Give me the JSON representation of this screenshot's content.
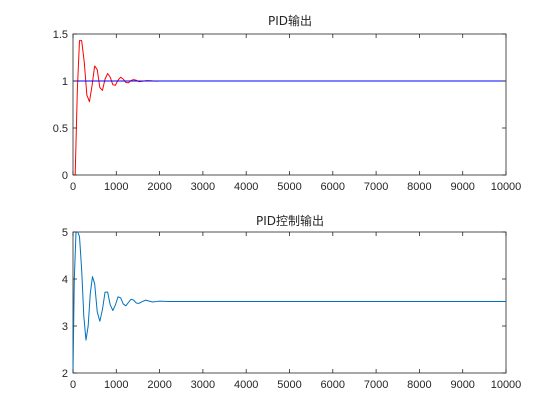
{
  "chart_data": [
    {
      "type": "line",
      "title": "PID输出",
      "xlabel": "",
      "ylabel": "",
      "xlim": [
        0,
        10000
      ],
      "ylim": [
        0,
        1.5
      ],
      "xticks": [
        "0",
        "1000",
        "2000",
        "3000",
        "4000",
        "5000",
        "6000",
        "7000",
        "8000",
        "9000",
        "10000"
      ],
      "yticks": [
        "0",
        "0.5",
        "1",
        "1.5"
      ],
      "grid": false,
      "series": [
        {
          "color": "#ff0000",
          "x": [
            0,
            50,
            100,
            150,
            200,
            260,
            320,
            380,
            440,
            500,
            560,
            620,
            680,
            740,
            800,
            860,
            920,
            980,
            1040,
            1100,
            1160,
            1220,
            1280,
            1340,
            1400,
            1460,
            1520,
            1600,
            1700,
            1800,
            1900,
            2000,
            2200,
            2500,
            3000,
            10000
          ],
          "y": [
            0,
            0.0,
            0.9,
            1.43,
            1.43,
            1.2,
            0.85,
            0.78,
            0.95,
            1.16,
            1.12,
            0.93,
            0.9,
            1.02,
            1.08,
            1.04,
            0.96,
            0.955,
            1.01,
            1.04,
            1.02,
            0.985,
            0.98,
            1.005,
            1.015,
            1.008,
            0.993,
            0.997,
            1.004,
            1.002,
            0.999,
            1.0,
            1.0,
            1.0,
            1.0,
            1.0
          ]
        },
        {
          "color": "#0000ff",
          "x": [
            0,
            10000
          ],
          "y": [
            1,
            1
          ]
        }
      ]
    },
    {
      "type": "line",
      "title": "PID控制输出",
      "xlabel": "",
      "ylabel": "",
      "xlim": [
        0,
        10000
      ],
      "ylim": [
        2,
        5
      ],
      "xticks": [
        "0",
        "1000",
        "2000",
        "3000",
        "4000",
        "5000",
        "6000",
        "7000",
        "8000",
        "9000",
        "10000"
      ],
      "yticks": [
        "2",
        "3",
        "4",
        "5"
      ],
      "grid": false,
      "series": [
        {
          "color": "#0072bd",
          "x": [
            0,
            30,
            70,
            110,
            150,
            200,
            250,
            300,
            350,
            400,
            450,
            500,
            560,
            620,
            680,
            740,
            800,
            860,
            920,
            980,
            1040,
            1100,
            1160,
            1220,
            1280,
            1340,
            1400,
            1460,
            1520,
            1600,
            1680,
            1760,
            1840,
            1920,
            2000,
            2200,
            2500,
            3000,
            10000
          ],
          "y": [
            2.0,
            4.0,
            5.0,
            5.0,
            4.9,
            4.2,
            3.2,
            2.7,
            3.0,
            3.7,
            4.05,
            3.9,
            3.3,
            3.1,
            3.35,
            3.72,
            3.72,
            3.45,
            3.33,
            3.45,
            3.62,
            3.6,
            3.47,
            3.43,
            3.5,
            3.57,
            3.55,
            3.49,
            3.48,
            3.52,
            3.55,
            3.53,
            3.51,
            3.52,
            3.53,
            3.52,
            3.52,
            3.52,
            3.52
          ]
        }
      ]
    }
  ]
}
